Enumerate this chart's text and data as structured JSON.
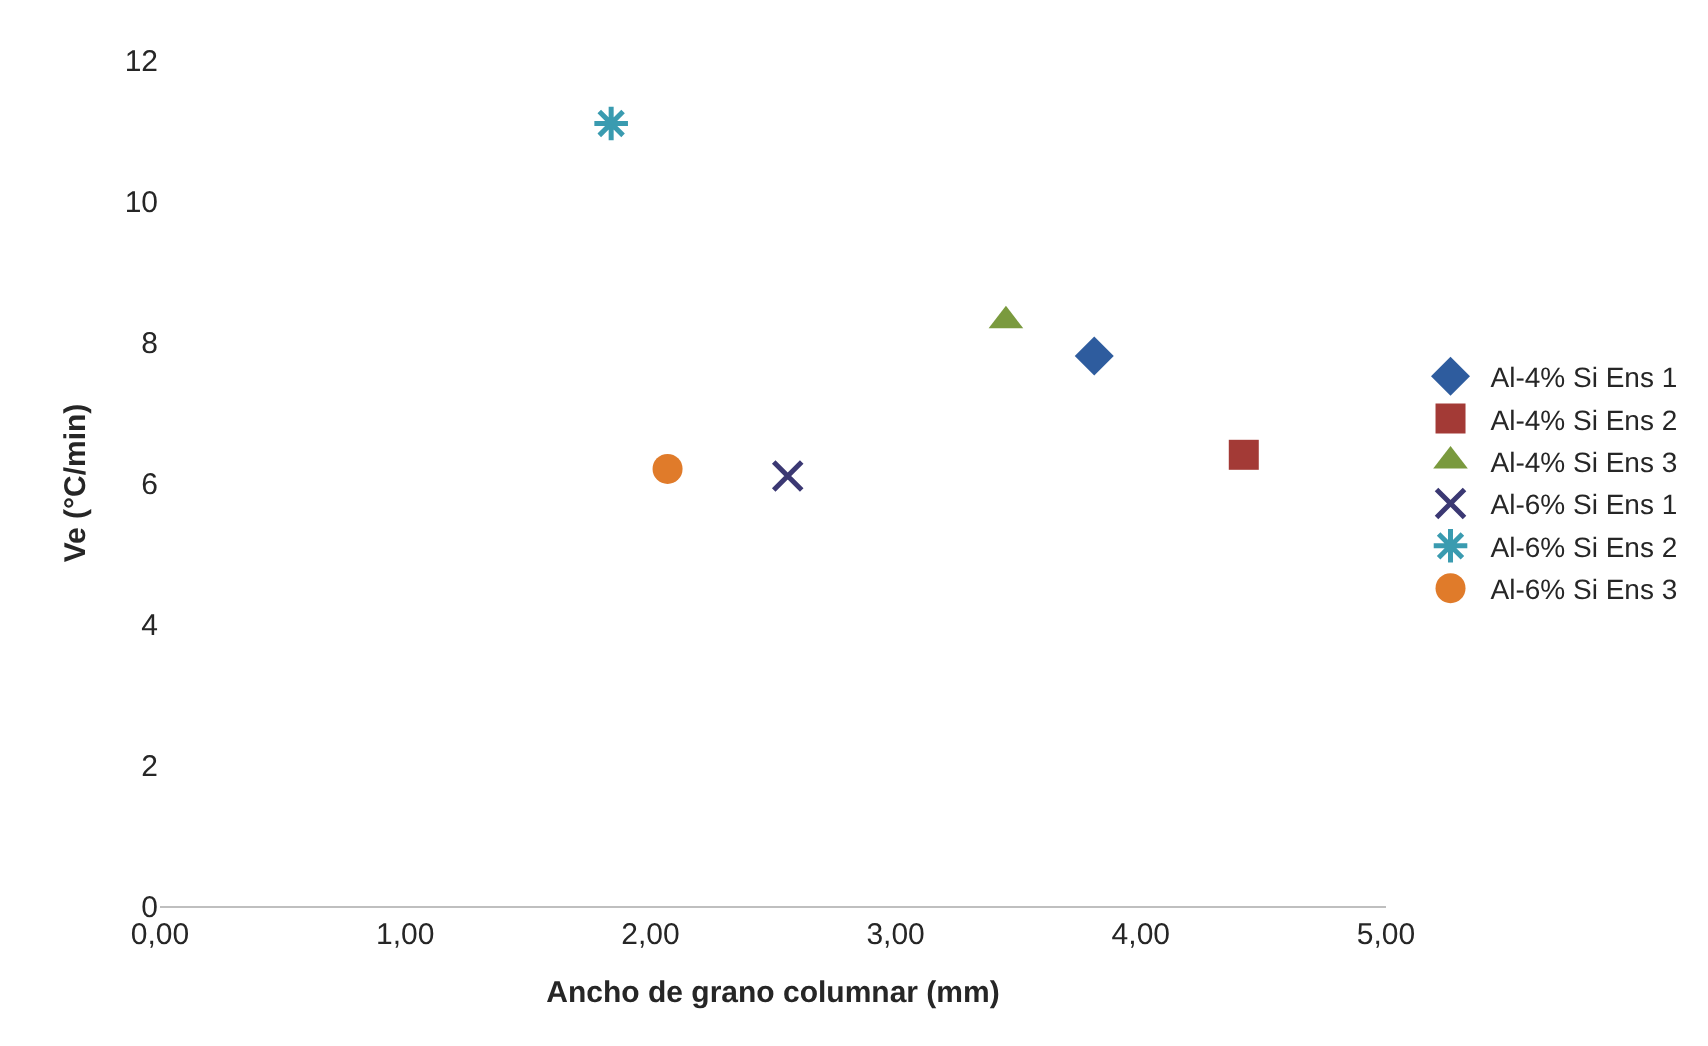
{
  "chart_data": {
    "type": "scatter",
    "xlabel": "Ancho de grano columnar (mm)",
    "ylabel": "Ve (°C/min)",
    "xlim": [
      0,
      5
    ],
    "xticks": [
      {
        "value": 0,
        "label": "0,00"
      },
      {
        "value": 1,
        "label": "1,00"
      },
      {
        "value": 2,
        "label": "2,00"
      },
      {
        "value": 3,
        "label": "3,00"
      },
      {
        "value": 4,
        "label": "4,00"
      },
      {
        "value": 5,
        "label": "5,00"
      }
    ],
    "ylim": [
      0,
      12
    ],
    "yticks": [
      0,
      2,
      4,
      6,
      8,
      10,
      12
    ],
    "grid": false,
    "legend": "right",
    "series": [
      {
        "name": "Al-4% Si Ens 1",
        "color": "#2e5c9e",
        "marker": "diamond",
        "x": [
          3.81
        ],
        "values": [
          7.8
        ]
      },
      {
        "name": "Al-4% Si Ens 2",
        "color": "#a33a36",
        "marker": "square",
        "x": [
          4.42
        ],
        "values": [
          6.4
        ]
      },
      {
        "name": "Al-4% Si Ens 3",
        "color": "#7a9a3e",
        "marker": "triangle",
        "x": [
          3.45
        ],
        "values": [
          8.3
        ]
      },
      {
        "name": "Al-6% Si Ens 1",
        "color": "#3b3873",
        "marker": "cross",
        "x": [
          2.56
        ],
        "values": [
          6.1
        ]
      },
      {
        "name": "Al-6% Si Ens 2",
        "color": "#3a9bb0",
        "marker": "cross",
        "x": [
          1.84
        ],
        "values": [
          11.1
        ]
      },
      {
        "name": "Al-6% Si Ens 3",
        "color": "#e07b2a",
        "marker": "circle",
        "x": [
          2.07
        ],
        "values": [
          6.2
        ]
      }
    ]
  }
}
